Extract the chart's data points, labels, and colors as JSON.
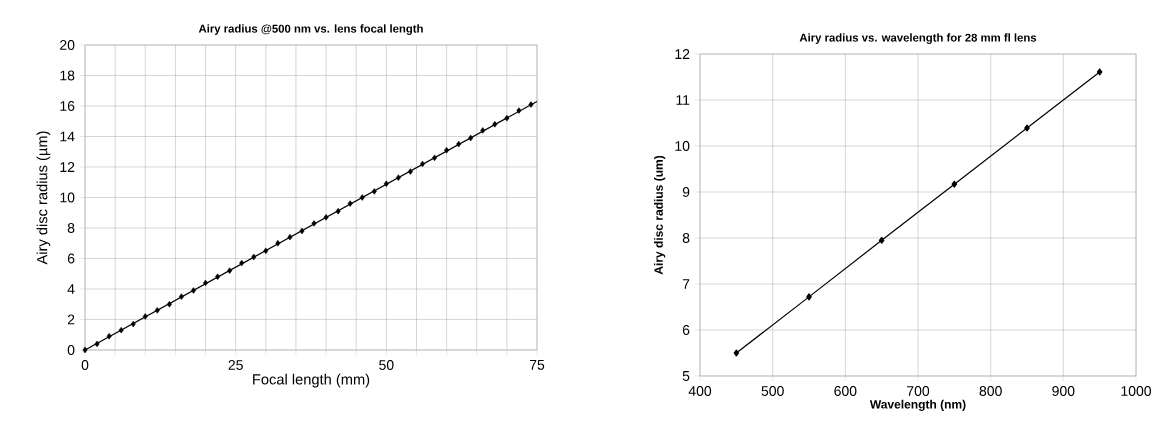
{
  "chart_data": [
    {
      "type": "scatter",
      "title": "Airy radius @500 nm vs. lens focal length",
      "xlabel": "Focal length (mm)",
      "ylabel": "Airy disc radius (µm)",
      "xlim": [
        0,
        75
      ],
      "ylim": [
        0,
        20
      ],
      "xticks": [
        0,
        {
          "value": 5,
          "label": null
        },
        {
          "value": 10,
          "label": null
        },
        {
          "value": 15,
          "label": null
        },
        {
          "value": 20,
          "label": null
        },
        25,
        {
          "value": 30,
          "label": null
        },
        {
          "value": 35,
          "label": null
        },
        {
          "value": 40,
          "label": null
        },
        {
          "value": 45,
          "label": null
        },
        50,
        {
          "value": 55,
          "label": null
        },
        {
          "value": 60,
          "label": null
        },
        {
          "value": 65,
          "label": null
        },
        {
          "value": 70,
          "label": null
        },
        75
      ],
      "yticks": [
        0,
        2,
        4,
        6,
        8,
        10,
        12,
        14,
        16,
        18,
        20
      ],
      "grid": true,
      "marker": "diamond",
      "series": [
        {
          "type": "scatter",
          "color": "#000000",
          "x": [
            0,
            2,
            4,
            6,
            8,
            10,
            12,
            14,
            16,
            18,
            20,
            22,
            24,
            26,
            28,
            30,
            32,
            34,
            36,
            38,
            40,
            42,
            44,
            46,
            48,
            50,
            52,
            54,
            56,
            58,
            60,
            62,
            64,
            66,
            68,
            70,
            72,
            74
          ],
          "values": [
            0,
            0.4,
            0.9,
            1.3,
            1.7,
            2.2,
            2.6,
            3.0,
            3.5,
            3.9,
            4.4,
            4.8,
            5.2,
            5.7,
            6.1,
            6.5,
            7.0,
            7.4,
            7.8,
            8.3,
            8.7,
            9.1,
            9.6,
            10.0,
            10.4,
            10.9,
            11.3,
            11.7,
            12.2,
            12.6,
            13.1,
            13.5,
            13.9,
            14.4,
            14.8,
            15.2,
            15.7,
            16.1
          ]
        },
        {
          "type": "line",
          "marker": "none",
          "line_style": "solid",
          "color": "#000000",
          "x": [
            0,
            75
          ],
          "values": [
            0,
            16.3
          ]
        }
      ]
    },
    {
      "type": "line",
      "title": "Airy radius vs. wavelength for 28 mm fl lens",
      "xlabel": "Wavelength (nm)",
      "ylabel": "Airy disc radius (um)",
      "xlim": [
        400,
        1000
      ],
      "ylim": [
        5,
        12
      ],
      "xticks": [
        400,
        500,
        600,
        700,
        800,
        900,
        1000
      ],
      "yticks": [
        5,
        6,
        7,
        8,
        9,
        10,
        11,
        12
      ],
      "grid": true,
      "marker": "diamond",
      "line_style": "solid",
      "series": [
        {
          "color": "#000000",
          "x": [
            450,
            550,
            650,
            750,
            850,
            950
          ],
          "values": [
            5.5,
            6.72,
            7.95,
            9.17,
            10.39,
            11.61
          ]
        }
      ]
    }
  ]
}
